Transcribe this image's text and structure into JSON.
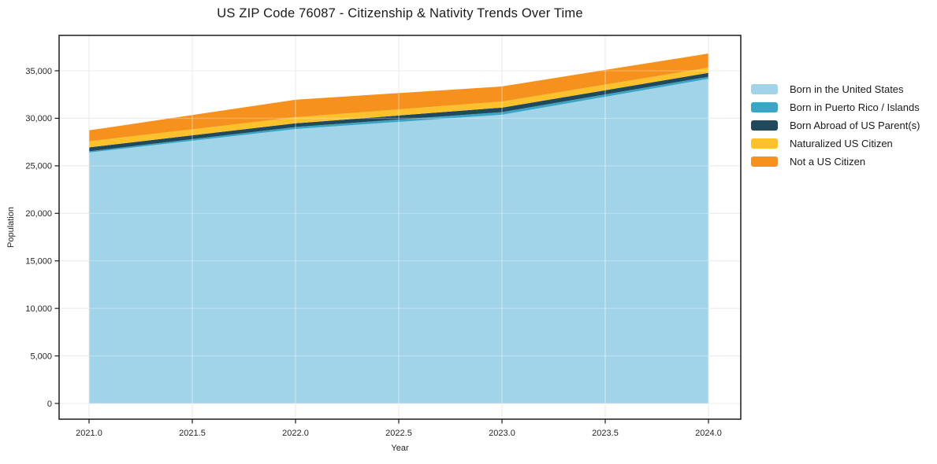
{
  "chart_data": {
    "type": "area",
    "stacked": true,
    "title": "US ZIP Code 76087 - Citizenship & Nativity Trends Over Time",
    "xlabel": "Year",
    "ylabel": "Population",
    "x": [
      2021.0,
      2022.0,
      2023.0,
      2024.0
    ],
    "series": [
      {
        "name": "Born in the United States",
        "color": "#a1d3e9",
        "values": [
          26400,
          28870,
          30380,
          34150
        ]
      },
      {
        "name": "Born in Puerto Rico / Islands",
        "color": "#3aa5c6",
        "values": [
          130,
          215,
          275,
          220
        ]
      },
      {
        "name": "Born Abroad of US Parent(s)",
        "color": "#20495c",
        "values": [
          410,
          390,
          470,
          410
        ]
      },
      {
        "name": "Naturalized US Citizen",
        "color": "#fcc12b",
        "values": [
          640,
          640,
          640,
          550
        ]
      },
      {
        "name": "Not a US Citizen",
        "color": "#f6911e",
        "values": [
          1150,
          1840,
          1590,
          1490
        ]
      }
    ],
    "stacked_totals": [
      28730,
      31955,
      33355,
      36820
    ],
    "xtick_values": [
      2021.0,
      2021.5,
      2022.0,
      2022.5,
      2023.0,
      2023.5,
      2024.0
    ],
    "xtick_labels": [
      "2021.0",
      "2021.5",
      "2022.0",
      "2022.5",
      "2023.0",
      "2023.5",
      "2024.0"
    ],
    "ytick_values": [
      0,
      5000,
      10000,
      15000,
      20000,
      25000,
      30000,
      35000
    ],
    "ytick_labels": [
      "0",
      "5,000",
      "10,000",
      "15,000",
      "20,000",
      "25,000",
      "30,000",
      "35,000"
    ],
    "xlim": [
      2020.86,
      2024.16
    ],
    "ylim": [
      0,
      38700
    ],
    "grid": true,
    "legend_position": "right-outside",
    "background_color": "#ffffff",
    "grid_color": "#ebebeb",
    "spine_color": "#1a1a1a"
  }
}
